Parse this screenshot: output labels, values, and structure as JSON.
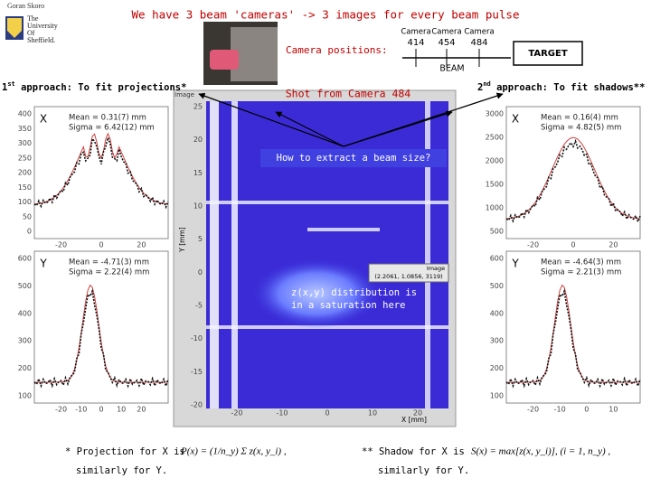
{
  "header": {
    "title": "We have 3 beam 'cameras' -> 3 images for every beam pulse",
    "author": "Goran Skoro",
    "university": [
      "The",
      "University",
      "Of",
      "Sheffield."
    ]
  },
  "setup": {
    "label": "Camera positions:",
    "cameras": [
      {
        "name": "Camera",
        "position": "414"
      },
      {
        "name": "Camera",
        "position": "454"
      },
      {
        "name": "Camera",
        "position": "484"
      }
    ],
    "target": "TARGET",
    "beam": "BEAM"
  },
  "left": {
    "heading": {
      "number": "1",
      "suffix": "st",
      "text": " approach: To fit projections*"
    },
    "plots": [
      {
        "label": "X",
        "mean": "Mean = 0.31(7) mm",
        "sigma": "Sigma = 6.42(12) mm",
        "yticks": [
          "400",
          "350",
          "300",
          "250",
          "200",
          "150",
          "100",
          "50",
          "0"
        ],
        "xticks": [
          "-20",
          "0",
          "20"
        ]
      },
      {
        "label": "Y",
        "mean": "Mean = -4.71(3) mm",
        "sigma": "Sigma = 2.22(4) mm",
        "yticks": [
          "600",
          "500",
          "400",
          "300",
          "200",
          "100"
        ],
        "xticks": [
          "-20",
          "-10",
          "0",
          "10",
          "20"
        ]
      }
    ]
  },
  "center": {
    "heading": "Shot from Camera 484",
    "question": "How to extract a beam size?",
    "note": [
      "z(x,y) distribution is",
      "in a saturation here"
    ],
    "image_label": "Image",
    "stats_box": {
      "title": "Image",
      "values": "(2.2061, 1.0856, 3119)"
    },
    "y_axis": "Y [mm]",
    "x_axis": "X [mm]",
    "yticks": [
      "25",
      "20",
      "15",
      "10",
      "5",
      "0",
      "-5",
      "-10",
      "-15",
      "-20"
    ],
    "xticks": [
      "-20",
      "-10",
      "0",
      "10",
      "20"
    ]
  },
  "right": {
    "heading": {
      "number": "2",
      "suffix": "nd",
      "text": " approach: To fit shadows**"
    },
    "plots": [
      {
        "label": "X",
        "mean": "Mean = 0.16(4) mm",
        "sigma": "Sigma = 4.82(5) mm",
        "yticks": [
          "3000",
          "2500",
          "2000",
          "1500",
          "1000",
          "500"
        ],
        "xticks": [
          "-20",
          "0",
          "20"
        ]
      },
      {
        "label": "Y",
        "mean": "Mean = -4.64(3) mm",
        "sigma": "Sigma = 2.21(3) mm",
        "yticks": [
          "600",
          "500",
          "400",
          "300",
          "200",
          "100"
        ],
        "xticks": [
          "-20",
          "-10",
          "0",
          "10"
        ]
      }
    ]
  },
  "footer": {
    "projection": {
      "text": "* Projection for X is",
      "formula": "P(x) = (1/n_y) Σ z(x, y_i) ,",
      "similar": "similarly for Y."
    },
    "shadow": {
      "text": "** Shadow for X is",
      "formula": "S(x) = max[z(x, y_i)], (i = 1, n_y) ,",
      "similar": "similarly for Y."
    }
  }
}
